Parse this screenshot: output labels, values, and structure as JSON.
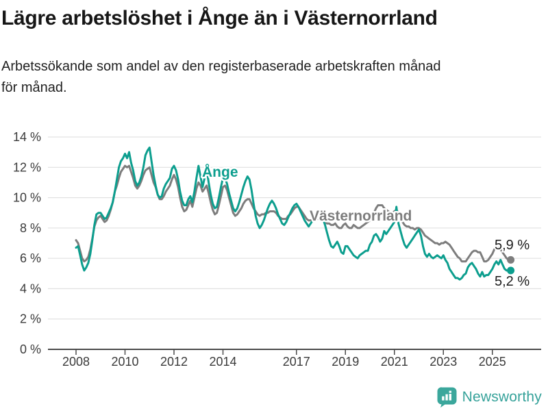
{
  "header": {
    "title": "Lägre arbetslöshet i Ånge än i Västernorrland",
    "subtitle_lines": [
      "Arbetssökande som andel av den registerbaserade arbetskraften månad",
      "för månad."
    ]
  },
  "branding": {
    "logo_text": "Newsworthy",
    "logo_color": "#3ba79c",
    "logo_text_color": "#36a29a"
  },
  "colors": {
    "ange_line": "#0c9e8e",
    "vasternorrland_line": "#7d7d7d",
    "gridline": "#dcdcdc",
    "axis": "#4a4a4a",
    "tick_text": "#3a3a3a",
    "annotation_text": "#1a1a1a"
  },
  "chart_data": {
    "type": "line",
    "frequency": "monthly",
    "x_start": "2008-01",
    "x_end": "2025-09",
    "unit": "%",
    "ylim": [
      0,
      14
    ],
    "ytick_step": 2,
    "ytick_labels": [
      "0 %",
      "2 %",
      "4 %",
      "6 %",
      "8 %",
      "10 %",
      "12 %",
      "14 %"
    ],
    "xtick_years": [
      2008,
      2010,
      2012,
      2014,
      2017,
      2019,
      2021,
      2023,
      2025
    ],
    "grid": "horizontal",
    "legend": "inline-labels",
    "series": [
      {
        "name": "Västernorrland",
        "color": "#7d7d7d",
        "end_label": "5,9 %",
        "last_value": 5.9,
        "values": [
          7.2,
          7.0,
          6.5,
          6.0,
          5.8,
          5.9,
          6.1,
          6.6,
          7.3,
          8.1,
          8.5,
          8.7,
          8.8,
          8.6,
          8.4,
          8.5,
          8.8,
          9.2,
          9.7,
          10.4,
          10.8,
          11.3,
          11.7,
          11.9,
          12.1,
          12.0,
          12.1,
          11.7,
          11.3,
          10.8,
          10.6,
          10.8,
          11.1,
          11.5,
          11.8,
          11.9,
          12.0,
          11.5,
          11.0,
          10.7,
          10.2,
          9.9,
          9.9,
          10.1,
          10.4,
          10.6,
          10.8,
          11.2,
          11.5,
          11.2,
          10.7,
          10.0,
          9.4,
          9.1,
          9.2,
          9.5,
          9.8,
          9.4,
          10.0,
          10.6,
          11.0,
          10.8,
          10.4,
          10.6,
          10.8,
          10.3,
          9.7,
          9.2,
          8.9,
          9.0,
          9.5,
          10.1,
          10.7,
          10.8,
          10.5,
          10.0,
          9.5,
          9.0,
          8.8,
          8.9,
          9.1,
          9.3,
          9.6,
          9.8,
          9.9,
          9.9,
          9.6,
          9.3,
          9.1,
          8.9,
          8.8,
          8.9,
          8.9,
          9.0,
          9.0,
          9.1,
          9.1,
          9.1,
          9.0,
          8.8,
          8.7,
          8.6,
          8.6,
          8.6,
          8.8,
          8.9,
          9.1,
          9.3,
          9.4,
          9.4,
          9.2,
          9.0,
          8.8,
          8.6,
          8.5,
          8.5,
          8.6,
          8.6,
          8.6,
          8.6,
          8.5,
          8.5,
          8.4,
          8.3,
          8.3,
          8.2,
          8.2,
          8.3,
          8.1,
          8.0,
          8.0,
          8.2,
          8.3,
          8.1,
          8.0,
          8.0,
          8.2,
          8.1,
          8.0,
          8.0,
          8.1,
          8.2,
          8.3,
          8.4,
          8.5,
          8.6,
          9.0,
          9.3,
          9.5,
          9.5,
          9.5,
          9.3,
          9.2,
          9.1,
          9.0,
          9.0,
          9.1,
          9.2,
          9.0,
          8.7,
          8.4,
          8.2,
          8.1,
          8.1,
          8.0,
          8.0,
          7.9,
          8.0,
          8.0,
          7.9,
          7.7,
          7.5,
          7.4,
          7.3,
          7.2,
          7.1,
          7.0,
          7.0,
          6.9,
          7.0,
          7.0,
          7.1,
          7.0,
          6.9,
          6.7,
          6.5,
          6.3,
          6.1,
          6.0,
          5.8,
          5.8,
          5.8,
          6.0,
          6.2,
          6.4,
          6.5,
          6.5,
          6.4,
          6.4,
          6.1,
          5.8,
          5.8,
          5.9,
          6.1,
          6.3,
          6.6,
          6.7,
          6.7,
          6.6,
          6.4,
          6.2,
          6.0,
          5.9
        ]
      },
      {
        "name": "Ånge",
        "color": "#0c9e8e",
        "end_label": "5,2 %",
        "last_value": 5.2,
        "values": [
          6.7,
          6.8,
          6.2,
          5.6,
          5.2,
          5.4,
          5.7,
          6.3,
          7.2,
          8.2,
          8.9,
          9.0,
          9.0,
          8.8,
          8.6,
          8.7,
          9.0,
          9.3,
          9.7,
          10.4,
          11.2,
          12.0,
          12.4,
          12.6,
          12.9,
          12.6,
          13.0,
          12.3,
          11.8,
          11.1,
          10.8,
          11.0,
          11.4,
          12.0,
          12.8,
          13.1,
          13.3,
          12.4,
          11.5,
          10.8,
          10.2,
          10.0,
          10.1,
          10.6,
          10.9,
          11.1,
          11.3,
          11.9,
          12.1,
          11.8,
          11.2,
          10.4,
          9.8,
          9.5,
          9.5,
          9.9,
          10.1,
          9.7,
          10.4,
          11.3,
          12.1,
          11.4,
          10.7,
          11.3,
          11.9,
          11.0,
          10.2,
          9.6,
          9.3,
          9.4,
          10.0,
          10.7,
          11.3,
          11.3,
          10.9,
          10.3,
          9.8,
          9.3,
          9.1,
          9.3,
          9.7,
          10.2,
          10.7,
          11.1,
          11.4,
          11.2,
          10.5,
          9.6,
          8.8,
          8.3,
          8.0,
          8.2,
          8.5,
          8.9,
          9.3,
          9.6,
          9.8,
          9.6,
          9.3,
          8.9,
          8.6,
          8.3,
          8.2,
          8.4,
          8.7,
          9.0,
          9.3,
          9.5,
          9.6,
          9.4,
          9.1,
          8.8,
          8.5,
          8.3,
          8.1,
          8.3,
          8.5,
          8.6,
          8.7,
          8.8,
          8.8,
          8.6,
          8.2,
          7.7,
          7.2,
          6.8,
          6.7,
          6.9,
          7.1,
          6.8,
          6.4,
          6.3,
          6.8,
          6.8,
          6.6,
          6.4,
          6.2,
          6.1,
          6.0,
          6.2,
          6.3,
          6.4,
          6.5,
          6.5,
          6.9,
          7.1,
          7.5,
          7.6,
          7.4,
          7.1,
          7.3,
          7.8,
          7.6,
          7.8,
          8.0,
          8.2,
          8.4,
          9.4,
          8.3,
          7.8,
          7.3,
          6.9,
          6.7,
          6.9,
          7.1,
          7.3,
          7.5,
          7.7,
          7.9,
          7.5,
          6.8,
          6.3,
          6.1,
          6.3,
          6.1,
          6.0,
          6.1,
          6.2,
          6.1,
          6.0,
          6.2,
          5.9,
          5.7,
          5.3,
          5.1,
          4.9,
          4.7,
          4.7,
          4.6,
          4.7,
          4.9,
          5.0,
          5.4,
          5.6,
          5.7,
          5.5,
          5.3,
          5.0,
          4.8,
          5.1,
          4.8,
          4.9,
          4.9,
          5.1,
          5.3,
          5.6,
          5.8,
          5.6,
          5.9,
          5.6,
          5.3,
          5.2,
          5.2
        ]
      }
    ]
  }
}
